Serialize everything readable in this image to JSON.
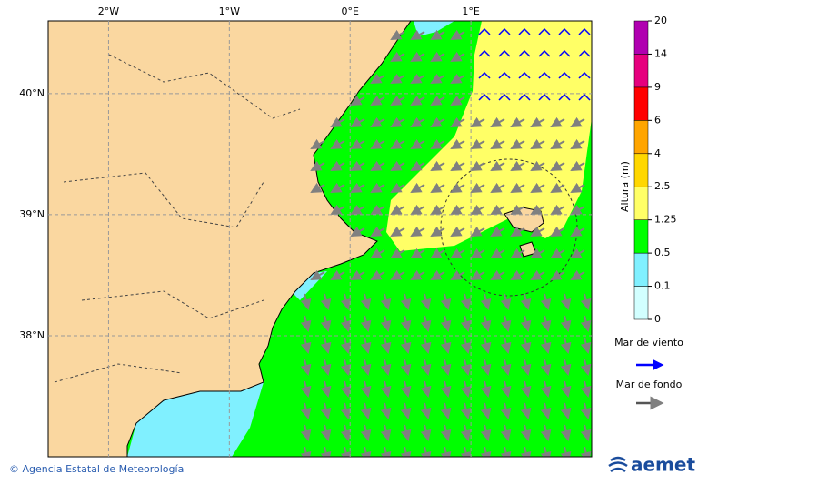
{
  "map": {
    "xlim": [
      -2.5,
      2.0
    ],
    "ylim": [
      37.0,
      40.6
    ],
    "xticks": [
      {
        "value": -2,
        "label": "2°W"
      },
      {
        "value": -1,
        "label": "1°W"
      },
      {
        "value": 0,
        "label": "0°E"
      },
      {
        "value": 1,
        "label": "1°E"
      }
    ],
    "yticks": [
      {
        "value": 40,
        "label": "40°N"
      },
      {
        "value": 39,
        "label": "39°N"
      },
      {
        "value": 38,
        "label": "38°N"
      }
    ],
    "grid": true
  },
  "colorbar": {
    "title": "Altura (m)",
    "ticks": [
      0,
      0.1,
      0.5,
      1.25,
      2.5,
      4,
      6,
      9,
      14,
      20
    ],
    "colors": [
      "#d2ffff",
      "#80f0ff",
      "#00ff00",
      "#ffff66",
      "#ffd700",
      "#ffa500",
      "#ff0000",
      "#e6007e",
      "#b000b0"
    ]
  },
  "legend": [
    {
      "label": "Mar de viento",
      "color": "#0000ff"
    },
    {
      "label": "Mar de fondo",
      "color": "#555555"
    }
  ],
  "footer": {
    "credit": "© Agencia Estatal de Meteorología",
    "logo": "aemet"
  }
}
